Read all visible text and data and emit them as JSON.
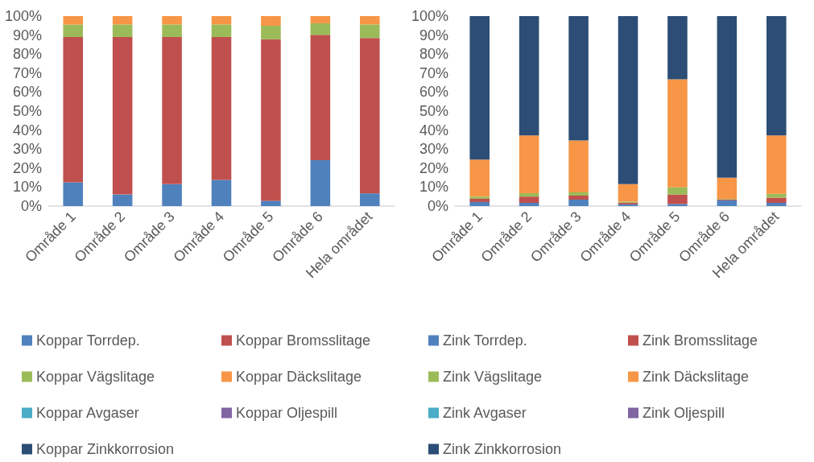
{
  "chart_data": [
    {
      "type": "bar",
      "stacked": true,
      "categories": [
        "Område 1",
        "Område 2",
        "Område 3",
        "Område 4",
        "Område 5",
        "Område 6",
        "Hela området"
      ],
      "ylim": [
        0,
        100
      ],
      "yticks": [
        {
          "value": 0,
          "label": "0%"
        },
        {
          "value": 10,
          "label": "10%"
        },
        {
          "value": 20,
          "label": "20%"
        },
        {
          "value": 30,
          "label": "30%"
        },
        {
          "value": 40,
          "label": "40%"
        },
        {
          "value": 50,
          "label": "50%"
        },
        {
          "value": 60,
          "label": "60%"
        },
        {
          "value": 70,
          "label": "70%"
        },
        {
          "value": 80,
          "label": "80%"
        },
        {
          "value": 90,
          "label": "90%"
        },
        {
          "value": 100,
          "label": "100%"
        }
      ],
      "grid": false,
      "legend": "bottom",
      "series": [
        {
          "name": "Koppar Torrdep.",
          "color": "#4f81bd",
          "values": [
            12.5,
            6.1,
            11.5,
            13.8,
            2.8,
            24.1,
            6.7
          ]
        },
        {
          "name": "Koppar Bromsslitage",
          "color": "#c0504d",
          "values": [
            76.5,
            82.9,
            77.5,
            75.2,
            85,
            66,
            81.8
          ]
        },
        {
          "name": "Koppar Vägslitage",
          "color": "#9bbb59",
          "values": [
            6.6,
            6.6,
            6.6,
            6.6,
            7.1,
            6.1,
            7.1
          ]
        },
        {
          "name": "Koppar Däckslitage",
          "color": "#f79646",
          "values": [
            4.4,
            4.4,
            4.4,
            4.4,
            5.1,
            3.8,
            4.4
          ]
        },
        {
          "name": "Koppar Avgaser",
          "color": "#4bacc6",
          "values": [
            0,
            0,
            0,
            0,
            0,
            0,
            0
          ]
        },
        {
          "name": "Koppar Oljespill",
          "color": "#8064a2",
          "values": [
            0,
            0,
            0,
            0,
            0,
            0,
            0
          ]
        },
        {
          "name": "Koppar Zinkkorrosion",
          "color": "#2c4d75",
          "values": [
            0,
            0,
            0,
            0,
            0,
            0,
            0
          ]
        }
      ]
    },
    {
      "type": "bar",
      "stacked": true,
      "categories": [
        "Område 1",
        "Område 2",
        "Område 3",
        "Område 4",
        "Område 5",
        "Område 6",
        "Hela området"
      ],
      "ylim": [
        0,
        100
      ],
      "yticks": [
        {
          "value": 0,
          "label": "0%"
        },
        {
          "value": 10,
          "label": "10%"
        },
        {
          "value": 20,
          "label": "20%"
        },
        {
          "value": 30,
          "label": "30%"
        },
        {
          "value": 40,
          "label": "40%"
        },
        {
          "value": 50,
          "label": "50%"
        },
        {
          "value": 60,
          "label": "60%"
        },
        {
          "value": 70,
          "label": "70%"
        },
        {
          "value": 80,
          "label": "80%"
        },
        {
          "value": 90,
          "label": "90%"
        },
        {
          "value": 100,
          "label": "100%"
        }
      ],
      "grid": false,
      "legend": "bottom",
      "series": [
        {
          "name": "Zink Torrdep.",
          "color": "#4f81bd",
          "values": [
            2.1,
            1.7,
            3.4,
            0.9,
            1.1,
            3,
            1.7
          ]
        },
        {
          "name": "Zink Bromsslitage",
          "color": "#c0504d",
          "values": [
            1.7,
            3.3,
            2.1,
            0.9,
            5,
            0.5,
            2.7
          ]
        },
        {
          "name": "Zink Vägslitage",
          "color": "#9bbb59",
          "values": [
            1.2,
            1.8,
            1.7,
            0.6,
            3.8,
            0.3,
            2.1
          ]
        },
        {
          "name": "Zink Däckslitage",
          "color": "#f79646",
          "values": [
            19.5,
            30.4,
            27.3,
            9.1,
            56.8,
            11.1,
            30.7
          ]
        },
        {
          "name": "Zink Avgaser",
          "color": "#4bacc6",
          "values": [
            0,
            0,
            0,
            0,
            0,
            0,
            0
          ]
        },
        {
          "name": "Zink Oljespill",
          "color": "#8064a2",
          "values": [
            0,
            0,
            0,
            0,
            0,
            0,
            0
          ]
        },
        {
          "name": "Zink Zinkkorrosion",
          "color": "#2c4d75",
          "values": [
            75.5,
            62.8,
            65.5,
            88.5,
            33.3,
            85.1,
            62.8
          ]
        }
      ]
    }
  ]
}
